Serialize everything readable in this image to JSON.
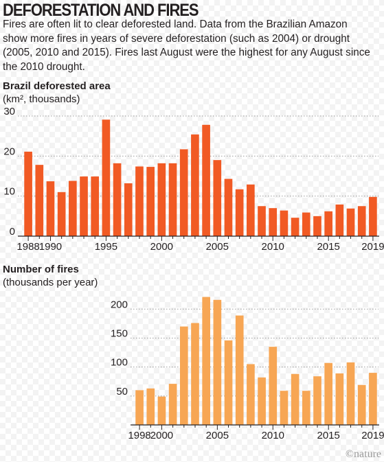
{
  "header": {
    "title": "DEFORESTATION AND FIRES",
    "subtitle": "Fires are often lit to clear deforested land. Data from the Brazilian Amazon show more fires in years of severe deforestation (such as 2004) or drought (2005, 2010 and 2015). Fires last August were the highest for any August since the 2010 drought."
  },
  "credit": "©nature",
  "chart_data": [
    {
      "type": "bar",
      "title": "Brazil deforested area",
      "ylabel": "(km², thousands)",
      "color": "#f15a24",
      "x": [
        1988,
        1989,
        1990,
        1991,
        1992,
        1993,
        1994,
        1995,
        1996,
        1997,
        1998,
        1999,
        2000,
        2001,
        2002,
        2003,
        2004,
        2005,
        2006,
        2007,
        2008,
        2009,
        2010,
        2011,
        2012,
        2013,
        2014,
        2015,
        2016,
        2017,
        2018,
        2019
      ],
      "values": [
        21.1,
        17.8,
        13.7,
        11.0,
        13.8,
        14.9,
        14.9,
        29.1,
        18.2,
        13.2,
        17.4,
        17.3,
        18.2,
        18.2,
        21.7,
        25.4,
        27.8,
        19.0,
        14.3,
        11.7,
        12.9,
        7.5,
        7.0,
        6.4,
        4.6,
        5.9,
        5.0,
        6.2,
        7.9,
        6.9,
        7.5,
        9.8
      ],
      "xticks": [
        "1988",
        "1990",
        "1995",
        "2000",
        "2005",
        "2010",
        "2015",
        "2019"
      ],
      "yticks": [
        "0",
        "10",
        "20",
        "30"
      ],
      "ylim": [
        0,
        30
      ],
      "grid": true
    },
    {
      "type": "bar",
      "title": "Number of fires",
      "ylabel": "(thousands per year)",
      "color": "#f7a654",
      "x": [
        1998,
        1999,
        2000,
        2001,
        2002,
        2003,
        2004,
        2005,
        2006,
        2007,
        2008,
        2009,
        2010,
        2011,
        2012,
        2013,
        2014,
        2015,
        2016,
        2017,
        2018,
        2019
      ],
      "values": [
        60,
        63,
        49,
        71,
        170,
        176,
        221,
        216,
        146,
        189,
        105,
        82,
        135,
        59,
        88,
        59,
        84,
        107,
        89,
        108,
        69,
        90
      ],
      "xticks": [
        "1998",
        "2000",
        "2005",
        "2010",
        "2015",
        "2019"
      ],
      "yticks": [
        "50",
        "100",
        "150",
        "200"
      ],
      "ylim": [
        0,
        230
      ],
      "grid": true
    }
  ]
}
